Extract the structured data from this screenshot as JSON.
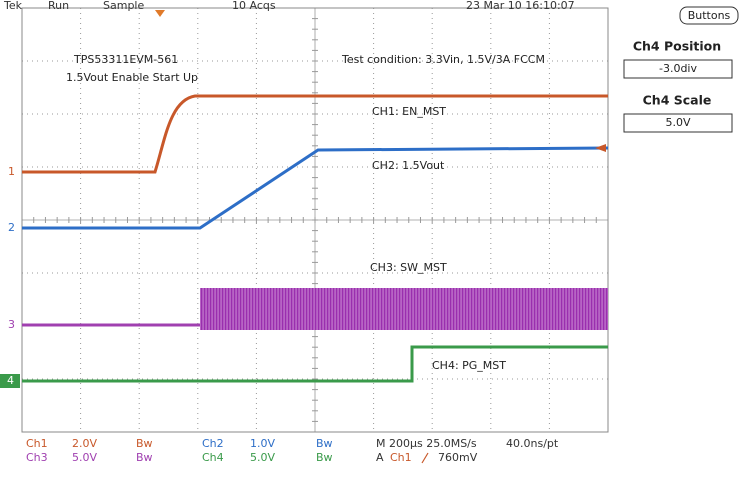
{
  "header": {
    "tek": "Tek",
    "run": "Run",
    "sample": "Sample",
    "acqs": "10 Acqs",
    "datetime": "23 Mar 10 16:10:07"
  },
  "annotations": {
    "board": "TPS53311EVM-561",
    "subtitle": "1.5Vout Enable Start Up",
    "condition": "Test condition: 3.3Vin, 1.5V/3A FCCM",
    "ch1": "CH1: EN_MST",
    "ch2": "CH2: 1.5Vout",
    "ch3": "CH3: SW_MST",
    "ch4": "CH4: PG_MST"
  },
  "markers": [
    "1",
    "2",
    "3",
    "4"
  ],
  "readout": {
    "row1": [
      "Ch1",
      "2.0V",
      "Bw",
      "Ch2",
      "1.0V",
      "Bw",
      "M 200µs 25.0MS/s",
      "40.0ns/pt"
    ],
    "row2": [
      "Ch3",
      "5.0V",
      "Bw",
      "Ch4",
      "5.0V",
      "Bw",
      "A",
      "Ch1",
      "760mV"
    ]
  },
  "side_panel": {
    "button": "Buttons",
    "position_label": "Ch4 Position",
    "position_value": "-3.0div",
    "scale_label": "Ch4 Scale",
    "scale_value": "5.0V"
  }
}
